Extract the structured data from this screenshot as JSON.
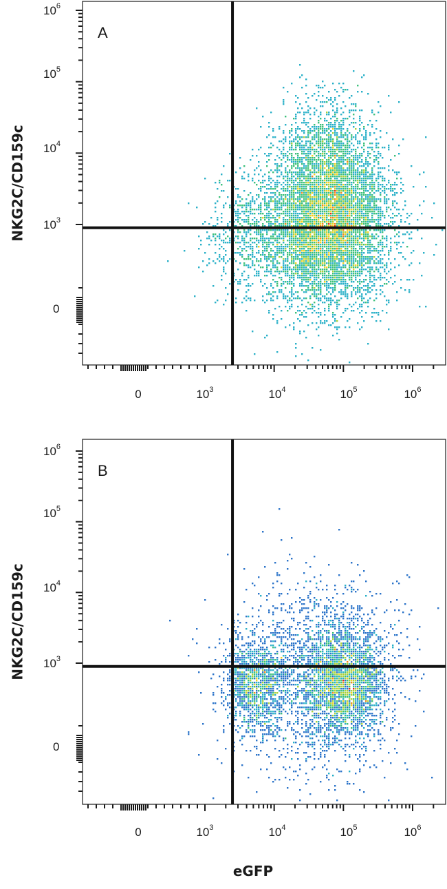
{
  "chart_data": [
    {
      "type": "scatter",
      "subtype": "flow-cytometry-density-plot",
      "panel_label": "A",
      "xlabel": "eGFP",
      "ylabel": "NKG2C/CD159c",
      "xscale": "biexponential",
      "yscale": "biexponential",
      "x_tick_labels": [
        {
          "value": 0,
          "base": "0",
          "exp": ""
        },
        {
          "value": 1000,
          "base": "10",
          "exp": "3"
        },
        {
          "value": 10000,
          "base": "10",
          "exp": "4"
        },
        {
          "value": 100000,
          "base": "10",
          "exp": "5"
        },
        {
          "value": 1000000,
          "base": "10",
          "exp": "6"
        }
      ],
      "y_tick_labels": [
        {
          "value": 0,
          "base": "0",
          "exp": ""
        },
        {
          "value": 1000,
          "base": "10",
          "exp": "3"
        },
        {
          "value": 10000,
          "base": "10",
          "exp": "4"
        },
        {
          "value": 100000,
          "base": "10",
          "exp": "5"
        },
        {
          "value": 1000000,
          "base": "10",
          "exp": "6"
        }
      ],
      "quadrant_gate": {
        "x": 2500,
        "y": 900
      },
      "populations": [
        {
          "center_x": 60000,
          "center_y": 900,
          "spread_x_decades": 0.45,
          "spread_y_decades": 0.55,
          "count": 6500,
          "peak_density": "high"
        },
        {
          "center_x": 60000,
          "center_y": 8000,
          "spread_x_decades": 0.35,
          "spread_y_decades": 0.45,
          "count": 1400,
          "peak_density": "low"
        },
        {
          "center_x": 5000,
          "center_y": 700,
          "spread_x_decades": 0.35,
          "spread_y_decades": 0.4,
          "count": 700,
          "peak_density": "low"
        }
      ]
    },
    {
      "type": "scatter",
      "subtype": "flow-cytometry-density-plot",
      "panel_label": "B",
      "xlabel": "eGFP",
      "ylabel": "NKG2C/CD159c",
      "xscale": "biexponential",
      "yscale": "biexponential",
      "x_tick_labels": [
        {
          "value": 0,
          "base": "0",
          "exp": ""
        },
        {
          "value": 1000,
          "base": "10",
          "exp": "3"
        },
        {
          "value": 10000,
          "base": "10",
          "exp": "4"
        },
        {
          "value": 100000,
          "base": "10",
          "exp": "5"
        },
        {
          "value": 1000000,
          "base": "10",
          "exp": "6"
        }
      ],
      "y_tick_labels": [
        {
          "value": 0,
          "base": "0",
          "exp": ""
        },
        {
          "value": 1000,
          "base": "10",
          "exp": "3"
        },
        {
          "value": 10000,
          "base": "10",
          "exp": "4"
        },
        {
          "value": 100000,
          "base": "10",
          "exp": "5"
        },
        {
          "value": 1000000,
          "base": "10",
          "exp": "6"
        }
      ],
      "quadrant_gate": {
        "x": 2500,
        "y": 900
      },
      "populations": [
        {
          "center_x": 5500,
          "center_y": 500,
          "spread_x_decades": 0.22,
          "spread_y_decades": 0.35,
          "count": 1300,
          "peak_density": "medium"
        },
        {
          "center_x": 100000,
          "center_y": 550,
          "spread_x_decades": 0.3,
          "spread_y_decades": 0.4,
          "count": 2600,
          "peak_density": "high"
        },
        {
          "center_x": 40000,
          "center_y": 600,
          "spread_x_decades": 0.6,
          "spread_y_decades": 0.7,
          "count": 1600,
          "peak_density": "low"
        }
      ]
    }
  ],
  "colors": {
    "density_scale": [
      "#2b3fa8",
      "#2a73c9",
      "#29b0c8",
      "#3cc07a",
      "#a8d13a",
      "#f0d020",
      "#f08a1c",
      "#e03018"
    ],
    "axes": "#1a1a1a",
    "gate_line": "#111111"
  }
}
